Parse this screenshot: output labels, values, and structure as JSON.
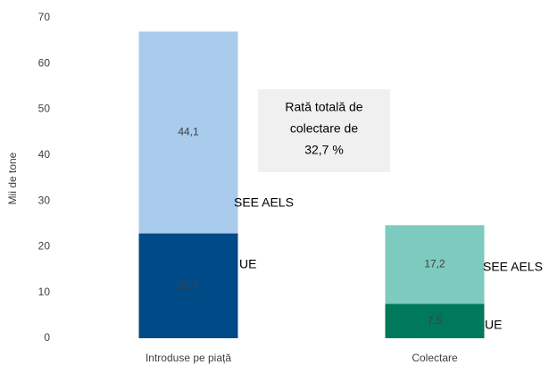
{
  "chart_data": {
    "type": "stacked_bar",
    "y_label": "Mii de tone",
    "categories": [
      "Introduse pe piață",
      "Colectare"
    ],
    "series": [
      {
        "name": "UE",
        "colors": [
          "#004a87",
          "#00785c"
        ],
        "values": [
          22.9,
          7.5
        ],
        "value_labels": [
          "22,9",
          "7,5"
        ]
      },
      {
        "name": "SEE AELS",
        "colors": [
          "#a9cbec",
          "#7dcbbe"
        ],
        "values": [
          44.1,
          17.2
        ],
        "value_labels": [
          "44,1",
          "17,2"
        ]
      }
    ],
    "annotation_lines": [
      "Rată totală de",
      "colectare de",
      "32,7 %"
    ],
    "ylim": [
      0,
      70
    ],
    "yticks": [
      0,
      10,
      20,
      30,
      40,
      50,
      60,
      70
    ],
    "grid": false
  }
}
